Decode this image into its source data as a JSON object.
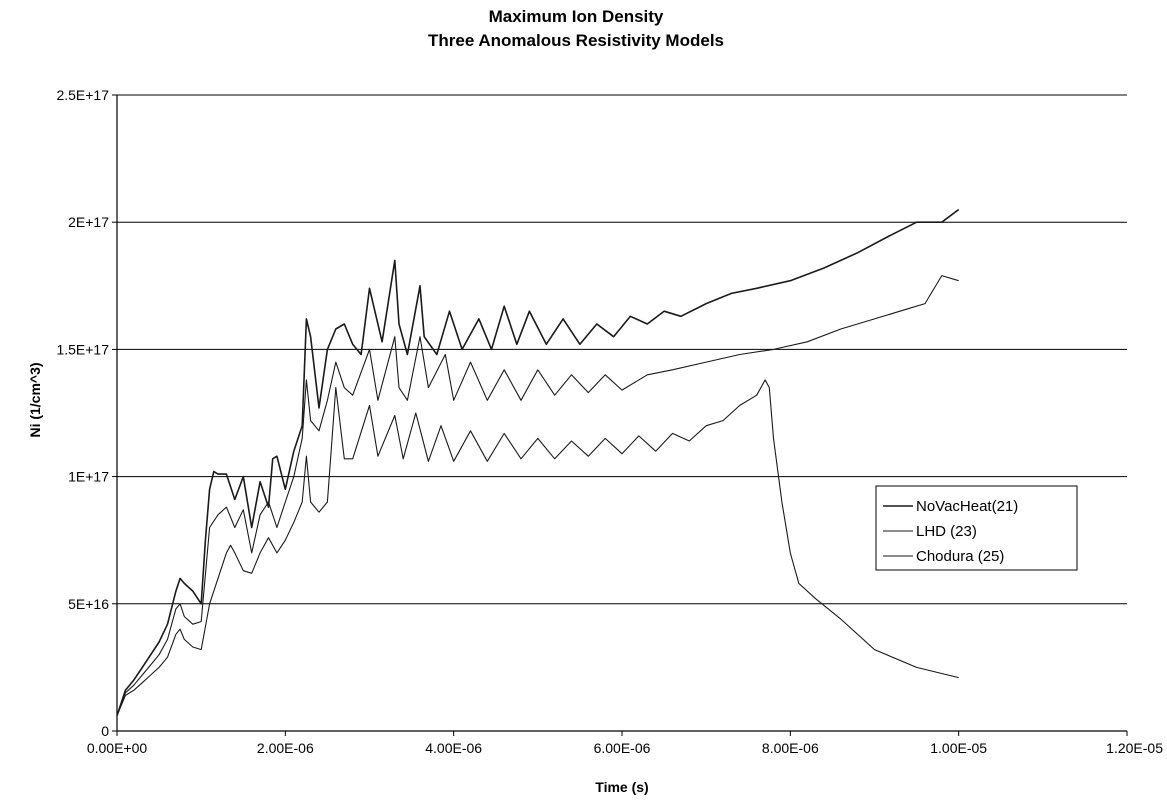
{
  "chart_data": {
    "type": "line",
    "title": "Maximum Ion Density",
    "subtitle": "Three Anomalous Resistivity Models",
    "xlabel": "Time (s)",
    "ylabel": "Ni (1/cm^3)",
    "xlim": [
      0,
      1.2e-05
    ],
    "ylim": [
      0,
      2.5e+17
    ],
    "x_ticks": [
      0,
      2e-06,
      4e-06,
      6e-06,
      8e-06,
      1e-05,
      1.2e-05
    ],
    "x_tick_labels": [
      "0.00E+00",
      "2.00E-06",
      "4.00E-06",
      "6.00E-06",
      "8.00E-06",
      "1.00E-05",
      "1.20E-05"
    ],
    "y_ticks": [
      0,
      5e+16,
      1e+17,
      1.5e+17,
      2e+17,
      2.5e+17
    ],
    "y_tick_labels": [
      "0",
      "5E+16",
      "1E+17",
      "1.5E+17",
      "2E+17",
      "2.5E+17"
    ],
    "grid": "horizontal",
    "legend_position": "right",
    "line_color": "#1a1a1a",
    "series": [
      {
        "name": "NoVacHeat(21)",
        "x": [
          0,
          1e-07,
          2e-07,
          3e-07,
          4e-07,
          5e-07,
          6e-07,
          7e-07,
          7.5e-07,
          8e-07,
          9e-07,
          1e-06,
          1.05e-06,
          1.1e-06,
          1.15e-06,
          1.2e-06,
          1.3e-06,
          1.4e-06,
          1.5e-06,
          1.6e-06,
          1.7e-06,
          1.8e-06,
          1.85e-06,
          1.9e-06,
          2e-06,
          2.1e-06,
          2.2e-06,
          2.25e-06,
          2.3e-06,
          2.4e-06,
          2.5e-06,
          2.6e-06,
          2.7e-06,
          2.8e-06,
          2.9e-06,
          3e-06,
          3.15e-06,
          3.3e-06,
          3.35e-06,
          3.45e-06,
          3.6e-06,
          3.65e-06,
          3.8e-06,
          3.95e-06,
          4.1e-06,
          4.3e-06,
          4.45e-06,
          4.6e-06,
          4.75e-06,
          4.9e-06,
          5.1e-06,
          5.3e-06,
          5.5e-06,
          5.7e-06,
          5.9e-06,
          6.1e-06,
          6.3e-06,
          6.5e-06,
          6.7e-06,
          7e-06,
          7.3e-06,
          7.6e-06,
          8e-06,
          8.4e-06,
          8.8e-06,
          9.2e-06,
          9.5e-06,
          9.8e-06,
          1e-05
        ],
        "values": [
          6000000000000000.0,
          1.6e+16,
          2e+16,
          2.5e+16,
          3e+16,
          3.5e+16,
          4.2e+16,
          5.5e+16,
          6e+16,
          5.8e+16,
          5.5e+16,
          5e+16,
          7.5e+16,
          9.5e+16,
          1.02e+17,
          1.01e+17,
          1.01e+17,
          9.1e+16,
          1e+17,
          8e+16,
          9.8e+16,
          8.8e+16,
          1.07e+17,
          1.08e+17,
          9.5e+16,
          1.1e+17,
          1.2e+17,
          1.62e+17,
          1.55e+17,
          1.27e+17,
          1.5e+17,
          1.58e+17,
          1.6e+17,
          1.52e+17,
          1.48e+17,
          1.74e+17,
          1.53e+17,
          1.85e+17,
          1.6e+17,
          1.48e+17,
          1.75e+17,
          1.55e+17,
          1.48e+17,
          1.65e+17,
          1.5e+17,
          1.62e+17,
          1.5e+17,
          1.67e+17,
          1.52e+17,
          1.65e+17,
          1.52e+17,
          1.62e+17,
          1.52e+17,
          1.6e+17,
          1.55e+17,
          1.63e+17,
          1.6e+17,
          1.65e+17,
          1.63e+17,
          1.68e+17,
          1.72e+17,
          1.74e+17,
          1.77e+17,
          1.82e+17,
          1.88e+17,
          1.95e+17,
          2e+17,
          2e+17,
          2.05e+17
        ]
      },
      {
        "name": "LHD (23)",
        "x": [
          0,
          1e-07,
          2e-07,
          3e-07,
          4e-07,
          5e-07,
          6e-07,
          7e-07,
          7.5e-07,
          8e-07,
          9e-07,
          1e-06,
          1.1e-06,
          1.2e-06,
          1.3e-06,
          1.4e-06,
          1.5e-06,
          1.6e-06,
          1.7e-06,
          1.8e-06,
          1.9e-06,
          2e-06,
          2.1e-06,
          2.2e-06,
          2.25e-06,
          2.3e-06,
          2.4e-06,
          2.5e-06,
          2.6e-06,
          2.7e-06,
          2.8e-06,
          3e-06,
          3.1e-06,
          3.3e-06,
          3.35e-06,
          3.45e-06,
          3.6e-06,
          3.7e-06,
          3.9e-06,
          4e-06,
          4.2e-06,
          4.4e-06,
          4.6e-06,
          4.8e-06,
          5e-06,
          5.2e-06,
          5.4e-06,
          5.6e-06,
          5.8e-06,
          6e-06,
          6.3e-06,
          6.6e-06,
          7e-06,
          7.4e-06,
          7.8e-06,
          8.2e-06,
          8.6e-06,
          9e-06,
          9.4e-06,
          9.6e-06,
          9.8e-06,
          1e-05
        ],
        "values": [
          6000000000000000.0,
          1.5e+16,
          1.8e+16,
          2.2e+16,
          2.6e+16,
          3e+16,
          3.6e+16,
          4.8e+16,
          5e+16,
          4.5e+16,
          4.2e+16,
          4.3e+16,
          8e+16,
          8.5e+16,
          8.8e+16,
          8e+16,
          8.7e+16,
          7e+16,
          8.5e+16,
          9e+16,
          8e+16,
          9e+16,
          1e+17,
          1.15e+17,
          1.38e+17,
          1.22e+17,
          1.18e+17,
          1.3e+17,
          1.45e+17,
          1.35e+17,
          1.32e+17,
          1.5e+17,
          1.3e+17,
          1.55e+17,
          1.35e+17,
          1.3e+17,
          1.55e+17,
          1.35e+17,
          1.48e+17,
          1.3e+17,
          1.45e+17,
          1.3e+17,
          1.42e+17,
          1.3e+17,
          1.42e+17,
          1.32e+17,
          1.4e+17,
          1.33e+17,
          1.4e+17,
          1.34e+17,
          1.4e+17,
          1.42e+17,
          1.45e+17,
          1.48e+17,
          1.5e+17,
          1.53e+17,
          1.58e+17,
          1.62e+17,
          1.66e+17,
          1.68e+17,
          1.79e+17,
          1.77e+17
        ]
      },
      {
        "name": "Chodura (25)",
        "x": [
          0,
          1e-07,
          2e-07,
          3e-07,
          4e-07,
          5e-07,
          6e-07,
          7e-07,
          7.5e-07,
          8e-07,
          9e-07,
          1e-06,
          1.1e-06,
          1.2e-06,
          1.3e-06,
          1.35e-06,
          1.4e-06,
          1.5e-06,
          1.6e-06,
          1.7e-06,
          1.8e-06,
          1.9e-06,
          2e-06,
          2.1e-06,
          2.2e-06,
          2.25e-06,
          2.3e-06,
          2.4e-06,
          2.5e-06,
          2.6e-06,
          2.7e-06,
          2.8e-06,
          3e-06,
          3.1e-06,
          3.3e-06,
          3.4e-06,
          3.55e-06,
          3.7e-06,
          3.85e-06,
          4e-06,
          4.2e-06,
          4.4e-06,
          4.6e-06,
          4.8e-06,
          5e-06,
          5.2e-06,
          5.4e-06,
          5.6e-06,
          5.8e-06,
          6e-06,
          6.2e-06,
          6.4e-06,
          6.6e-06,
          6.8e-06,
          7e-06,
          7.2e-06,
          7.4e-06,
          7.6e-06,
          7.7e-06,
          7.75e-06,
          7.8e-06,
          7.9e-06,
          8e-06,
          8.1e-06,
          8.3e-06,
          8.6e-06,
          9e-06,
          9.5e-06,
          1e-05
        ],
        "values": [
          6000000000000000.0,
          1.4e+16,
          1.6e+16,
          1.9e+16,
          2.2e+16,
          2.5e+16,
          2.9e+16,
          3.8e+16,
          4e+16,
          3.6e+16,
          3.3e+16,
          3.2e+16,
          5e+16,
          6e+16,
          7e+16,
          7.3e+16,
          7e+16,
          6.3e+16,
          6.2e+16,
          7e+16,
          7.6e+16,
          7e+16,
          7.5e+16,
          8.2e+16,
          9e+16,
          1.08e+17,
          9e+16,
          8.6e+16,
          9e+16,
          1.35e+17,
          1.07e+17,
          1.07e+17,
          1.28e+17,
          1.08e+17,
          1.24e+17,
          1.07e+17,
          1.25e+17,
          1.06e+17,
          1.2e+17,
          1.06e+17,
          1.18e+17,
          1.06e+17,
          1.17e+17,
          1.07e+17,
          1.15e+17,
          1.07e+17,
          1.14e+17,
          1.08e+17,
          1.15e+17,
          1.09e+17,
          1.16e+17,
          1.1e+17,
          1.17e+17,
          1.14e+17,
          1.2e+17,
          1.22e+17,
          1.28e+17,
          1.32e+17,
          1.38e+17,
          1.35e+17,
          1.15e+17,
          9e+16,
          7e+16,
          5.8e+16,
          5.2e+16,
          4.4e+16,
          3.2e+16,
          2.5e+16,
          2.1e+16
        ]
      }
    ]
  }
}
